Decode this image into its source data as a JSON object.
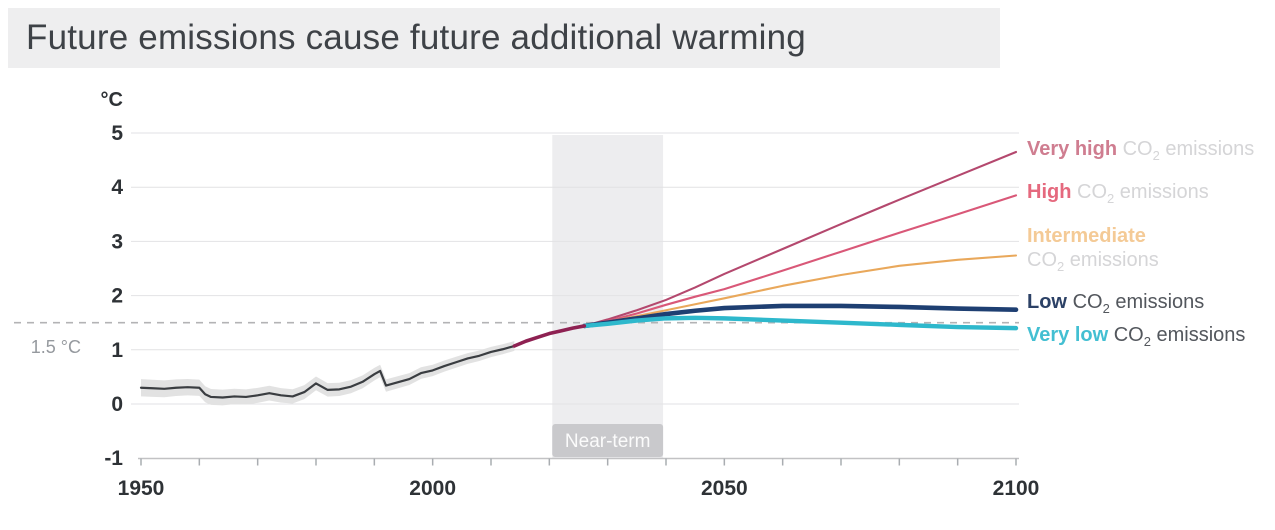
{
  "title": "Future emissions cause future additional warming",
  "chart_data": {
    "type": "line",
    "title": "Future emissions cause future additional warming",
    "x_axis": {
      "min": 1950,
      "max": 2100,
      "major_ticks": [
        1950,
        2000,
        2050,
        2100
      ],
      "minor_tick_step": 10
    },
    "y_axis": {
      "unit": "°C",
      "min": -1,
      "max": 5,
      "ticks": [
        5,
        4,
        3,
        2,
        1,
        0,
        -1
      ],
      "gridline_values": [
        0,
        1,
        2,
        3,
        4,
        5
      ]
    },
    "threshold_line": {
      "value": 1.5,
      "label": "1.5 °C",
      "style": "dashed",
      "color": "#b3b3b5"
    },
    "near_term_band": {
      "label": "Near-term",
      "from_year": 2020.5,
      "to_year": 2039.5,
      "band_color": "#ededef",
      "label_bg_color": "#c7c7c9",
      "label_text_color": "#fbfbfb"
    },
    "series": [
      {
        "id": "observed",
        "color": "#3a3d41",
        "width": 2.2,
        "uncertainty": {
          "halfwidth_start": 0.16,
          "halfwidth_end": 0.09,
          "color": "#e2e2e2"
        },
        "points": [
          [
            1950,
            0.3
          ],
          [
            1952,
            0.29
          ],
          [
            1954,
            0.28
          ],
          [
            1956,
            0.3
          ],
          [
            1958,
            0.31
          ],
          [
            1960,
            0.3
          ],
          [
            1961,
            0.18
          ],
          [
            1962,
            0.13
          ],
          [
            1964,
            0.12
          ],
          [
            1966,
            0.14
          ],
          [
            1968,
            0.13
          ],
          [
            1970,
            0.16
          ],
          [
            1972,
            0.2
          ],
          [
            1974,
            0.16
          ],
          [
            1976,
            0.14
          ],
          [
            1978,
            0.22
          ],
          [
            1980,
            0.38
          ],
          [
            1982,
            0.26
          ],
          [
            1984,
            0.27
          ],
          [
            1986,
            0.32
          ],
          [
            1988,
            0.41
          ],
          [
            1990,
            0.55
          ],
          [
            1991,
            0.61
          ],
          [
            1992,
            0.34
          ],
          [
            1994,
            0.4
          ],
          [
            1996,
            0.46
          ],
          [
            1998,
            0.57
          ],
          [
            2000,
            0.62
          ],
          [
            2002,
            0.7
          ],
          [
            2004,
            0.77
          ],
          [
            2006,
            0.84
          ],
          [
            2008,
            0.89
          ],
          [
            2010,
            0.96
          ],
          [
            2012,
            1.01
          ],
          [
            2014,
            1.07
          ]
        ]
      },
      {
        "id": "current",
        "color": "#8e2152",
        "width": 3.6,
        "points": [
          [
            2014,
            1.07
          ],
          [
            2016,
            1.16
          ],
          [
            2018,
            1.23
          ],
          [
            2020,
            1.3
          ],
          [
            2022,
            1.35
          ],
          [
            2024,
            1.4
          ],
          [
            2026,
            1.44
          ]
        ]
      },
      {
        "id": "very_high",
        "color": "#b4486e",
        "width": 2.1,
        "points": [
          [
            2026,
            1.44
          ],
          [
            2030,
            1.56
          ],
          [
            2035,
            1.73
          ],
          [
            2040,
            1.92
          ],
          [
            2045,
            2.15
          ],
          [
            2050,
            2.4
          ],
          [
            2060,
            2.86
          ],
          [
            2070,
            3.32
          ],
          [
            2080,
            3.77
          ],
          [
            2090,
            4.21
          ],
          [
            2100,
            4.65
          ]
        ]
      },
      {
        "id": "high",
        "color": "#d95878",
        "width": 2.1,
        "points": [
          [
            2026,
            1.44
          ],
          [
            2030,
            1.53
          ],
          [
            2035,
            1.67
          ],
          [
            2040,
            1.83
          ],
          [
            2045,
            1.98
          ],
          [
            2050,
            2.12
          ],
          [
            2060,
            2.46
          ],
          [
            2070,
            2.81
          ],
          [
            2080,
            3.16
          ],
          [
            2090,
            3.5
          ],
          [
            2100,
            3.85
          ]
        ]
      },
      {
        "id": "intermediate",
        "color": "#e9a85b",
        "width": 2.1,
        "points": [
          [
            2026,
            1.44
          ],
          [
            2030,
            1.52
          ],
          [
            2035,
            1.62
          ],
          [
            2040,
            1.73
          ],
          [
            2045,
            1.84
          ],
          [
            2050,
            1.95
          ],
          [
            2060,
            2.18
          ],
          [
            2070,
            2.38
          ],
          [
            2080,
            2.55
          ],
          [
            2090,
            2.66
          ],
          [
            2100,
            2.74
          ]
        ]
      },
      {
        "id": "low",
        "color": "#1e3f72",
        "width": 4.6,
        "points": [
          [
            2026,
            1.44
          ],
          [
            2030,
            1.5
          ],
          [
            2035,
            1.58
          ],
          [
            2040,
            1.66
          ],
          [
            2045,
            1.72
          ],
          [
            2050,
            1.77
          ],
          [
            2060,
            1.81
          ],
          [
            2070,
            1.81
          ],
          [
            2080,
            1.79
          ],
          [
            2090,
            1.76
          ],
          [
            2100,
            1.74
          ]
        ]
      },
      {
        "id": "very_low",
        "color": "#2eb8cc",
        "width": 4.4,
        "points": [
          [
            2026,
            1.44
          ],
          [
            2030,
            1.48
          ],
          [
            2035,
            1.54
          ],
          [
            2040,
            1.58
          ],
          [
            2045,
            1.59
          ],
          [
            2050,
            1.58
          ],
          [
            2060,
            1.54
          ],
          [
            2070,
            1.5
          ],
          [
            2080,
            1.46
          ],
          [
            2090,
            1.42
          ],
          [
            2100,
            1.4
          ]
        ]
      }
    ],
    "legend_position": "right",
    "grid": true
  },
  "legend": {
    "entries": [
      {
        "id": "very_high",
        "name": "Very high",
        "suffix": "CO₂ emissions",
        "name_color": "#cf7d90",
        "suffix_color": "#d5d5d7",
        "two_line": false
      },
      {
        "id": "high",
        "name": "High",
        "suffix": "CO₂ emissions",
        "name_color": "#e5697e",
        "suffix_color": "#d5d5d7",
        "two_line": false
      },
      {
        "id": "intermediate",
        "name": "Intermediate",
        "suffix": "CO₂ emissions",
        "name_color": "#f4ca96",
        "suffix_color": "#d5d5d7",
        "two_line": true
      },
      {
        "id": "low",
        "name": "Low",
        "suffix": "CO₂ emissions",
        "name_color": "#2c4166",
        "suffix_color": "#53575d",
        "two_line": false
      },
      {
        "id": "very_low",
        "name": "Very low",
        "suffix": "CO₂ emissions",
        "name_color": "#43bfd2",
        "suffix_color": "#53575d",
        "two_line": false
      }
    ]
  }
}
